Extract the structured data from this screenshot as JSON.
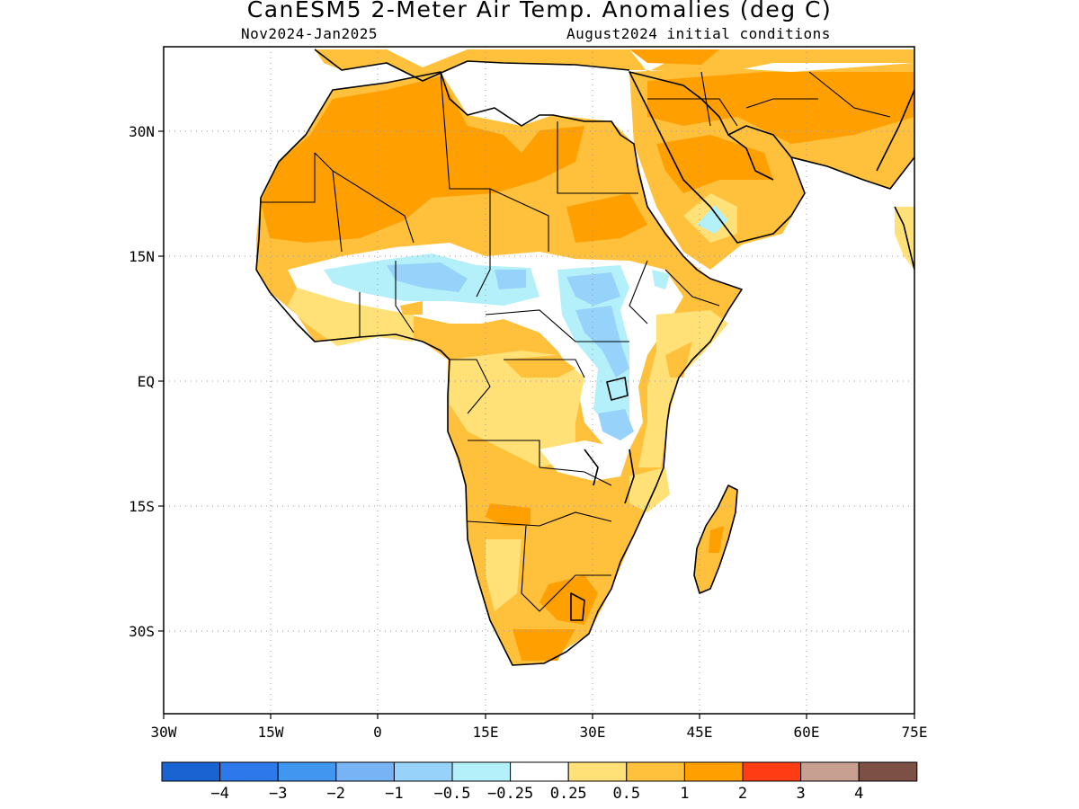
{
  "header": {
    "title": "CanESM5 2-Meter Air Temp. Anomalies (deg C)",
    "period": "Nov2024-Jan2025",
    "initial_conditions": "August2024 initial conditions"
  },
  "map": {
    "projection": "lat-lon",
    "lon_range": [
      -30,
      75
    ],
    "lat_range": [
      -46,
      45
    ],
    "x_ticks": [
      "30W",
      "15W",
      "0",
      "15E",
      "30E",
      "45E",
      "60E",
      "75E"
    ],
    "y_ticks": [
      "30N",
      "15N",
      "EQ",
      "15S",
      "30S"
    ],
    "gridlines": "dotted"
  },
  "colorbar": {
    "colors": [
      "#1964d2",
      "#2d78eb",
      "#4196f0",
      "#78b4f5",
      "#96d2fa",
      "#b4f0fa",
      "#ffffff",
      "#ffe178",
      "#ffc03c",
      "#ffa000",
      "#ff3c14",
      "#c8a091",
      "#7d5046"
    ],
    "labels": [
      "−4",
      "−3",
      "−2",
      "−1",
      "−0.5",
      "−0.25",
      "0.25",
      "0.5",
      "1",
      "2",
      "3",
      "4"
    ]
  },
  "anomaly_colors": {
    "strong_warm": "#ffa000",
    "warm": "#ffc03c",
    "mild_warm": "#ffe178",
    "neutral": "#ffffff",
    "mild_cool": "#b4f0fa",
    "cool": "#96d2fa",
    "cooler": "#78b4f5"
  }
}
